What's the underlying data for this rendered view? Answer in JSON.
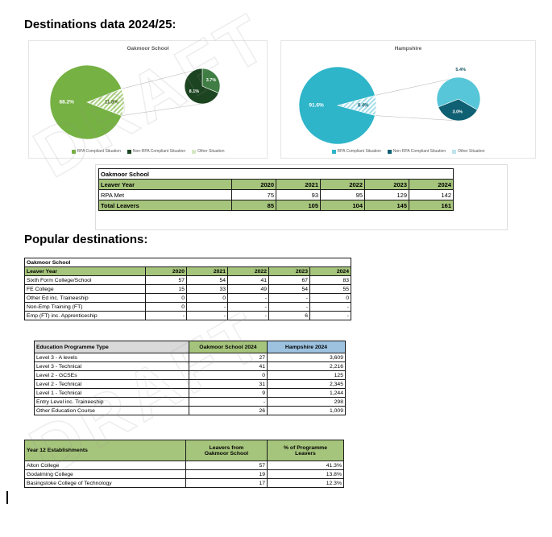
{
  "page": {
    "heading1": "Destinations data 2024/25:",
    "heading2": "Popular destinations:",
    "watermark": "DRAFT"
  },
  "chart_data": [
    {
      "type": "pie-of-pie",
      "title": "Oakmoor School",
      "main_slices": [
        {
          "name": "RPA Compliant Situation",
          "value": 88.2,
          "label": "88.2%",
          "color": "#76b143"
        },
        {
          "name": "Other group (exploded)",
          "value": 11.8,
          "label": "11.8%",
          "color": "hatch"
        }
      ],
      "hatch_color": "#a9d07e",
      "group_label_color": "#44631d",
      "secondary_start_deg": -90,
      "secondary_slices": [
        {
          "name": "Other Situation",
          "value": 3.7,
          "label": "3.7%",
          "color": "#3f7d45",
          "label_color": "#ffffff",
          "label_r": 0.6
        },
        {
          "name": "Non-RPA Compliant Situation",
          "value": 8.1,
          "label": "8.1%",
          "color": "#1c4420",
          "label_color": "#ffffff",
          "label_r": 0.55
        }
      ],
      "legend": [
        {
          "label": "RPA Compliant Situation",
          "color": "#76b143"
        },
        {
          "label": "Non-RPA Compliant Situation",
          "color": "#1c4420"
        },
        {
          "label": "Other Situation",
          "color": "#d8e8c4"
        }
      ]
    },
    {
      "type": "pie-of-pie",
      "title": "Hampshire",
      "main_slices": [
        {
          "name": "RPA Compliant Situation",
          "value": 91.6,
          "label": "91.6%",
          "color": "#2eb5c9"
        },
        {
          "name": "Other group (exploded)",
          "value": 8.4,
          "label": "8.4%",
          "color": "hatch"
        }
      ],
      "hatch_color": "#a4dde9",
      "group_label_color": "#0e6072",
      "secondary_start_deg": 30,
      "secondary_slices": [
        {
          "name": "Non-RPA Compliant Situation",
          "value": 3.0,
          "label": "3.0%",
          "color": "#0e6072",
          "label_color": "#ffffff",
          "label_r": 0.6
        },
        {
          "name": "Other Situation",
          "value": 5.4,
          "label": "5.4%",
          "color": "#57c6d8",
          "label_color": "#0e4f60",
          "label_r": 1.35
        }
      ],
      "legend": [
        {
          "label": "RPA Compliant Situation",
          "color": "#2eb5c9"
        },
        {
          "label": "Non-RPA Compliant Situation",
          "color": "#0e6072"
        },
        {
          "label": "Other Situation",
          "color": "#bce4ee"
        }
      ]
    }
  ],
  "tables": {
    "destinations": {
      "title": "Oakmoor School",
      "header": [
        "Leaver Year",
        "2020",
        "2021",
        "2022",
        "2023",
        "2024"
      ],
      "rows": [
        {
          "label": "RPA Met",
          "values": [
            "75",
            "93",
            "95",
            "129",
            "142"
          ],
          "highlight": false
        },
        {
          "label": "Total Leavers",
          "values": [
            "85",
            "105",
            "104",
            "145",
            "161"
          ],
          "highlight": true
        }
      ]
    },
    "popular": {
      "title": "Oakmoor School",
      "header": [
        "Leaver Year",
        "2020",
        "2021",
        "2022",
        "2023",
        "2024"
      ],
      "rows": [
        {
          "label": "Sixth Form College/School",
          "values": [
            "57",
            "54",
            "41",
            "67",
            "83"
          ]
        },
        {
          "label": "FE College",
          "values": [
            "15",
            "33",
            "49",
            "54",
            "55"
          ]
        },
        {
          "label": "Other Ed inc. Traineeship",
          "values": [
            "0",
            "0",
            "-",
            "-",
            "0"
          ]
        },
        {
          "label": "Non-Emp Training (FT)",
          "values": [
            "0",
            "-",
            "-",
            "-",
            "-"
          ]
        },
        {
          "label": "Emp (FT) inc. Apprenticeship",
          "values": [
            "-",
            "-",
            "-",
            "6",
            "-"
          ]
        }
      ]
    },
    "programme": {
      "header": [
        "Education Programme Type",
        "Oakmoor School 2024",
        "Hampshire 2024"
      ],
      "rows": [
        {
          "label": "Level 3 - A levels",
          "values": [
            "27",
            "3,609"
          ]
        },
        {
          "label": "Level 3 - Technical",
          "values": [
            "41",
            "2,216"
          ]
        },
        {
          "label": "Level 2 - GCSEs",
          "values": [
            "0",
            "125"
          ]
        },
        {
          "label": "Level 2 - Technical",
          "values": [
            "31",
            "2,345"
          ]
        },
        {
          "label": "Level 1 - Technical",
          "values": [
            "9",
            "1,244"
          ]
        },
        {
          "label": "Entry Level inc. Traineeship",
          "values": [
            "-",
            "298"
          ]
        },
        {
          "label": "Other Education Course",
          "values": [
            "26",
            "1,009"
          ]
        }
      ]
    },
    "year12": {
      "header": [
        "Year 12 Establishments",
        "Leavers from\nOakmoor School",
        "% of Programme\nLeavers"
      ],
      "rows": [
        {
          "label": "Alton College",
          "values": [
            "57",
            "41.3%"
          ]
        },
        {
          "label": "Godalming College",
          "values": [
            "19",
            "13.8%"
          ]
        },
        {
          "label": "Basingstoke College of Technology",
          "values": [
            "17",
            "12.3%"
          ]
        }
      ]
    }
  }
}
